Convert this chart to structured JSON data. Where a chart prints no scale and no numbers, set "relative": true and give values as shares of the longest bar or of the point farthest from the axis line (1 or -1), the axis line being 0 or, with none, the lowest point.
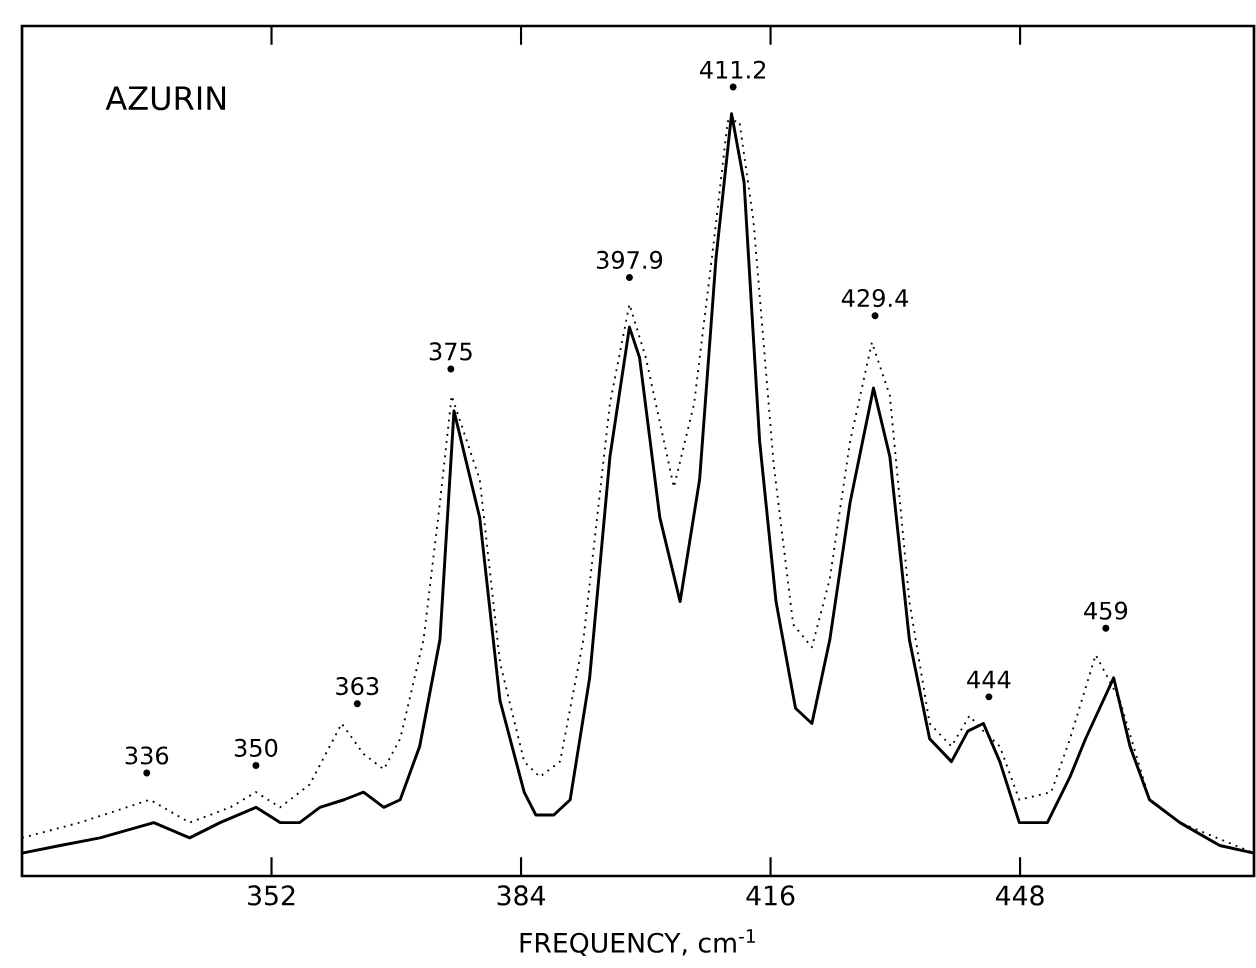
{
  "chart_data": {
    "type": "line",
    "relative": true,
    "xlabel": "FREQUENCY, cm$^{-1}$",
    "xlim": [
      320,
      478
    ],
    "xticks": [
      352,
      384,
      416,
      448
    ],
    "tick_labels": "x",
    "grid": false,
    "marker": "none",
    "series": [
      {
        "color": "#000000",
        "line_style": "solid",
        "x": [
          320,
          324.9,
          330,
          336.9,
          341.5,
          345.4,
          350,
          353.1,
          355.6,
          358.2,
          361.3,
          363.8,
          366.4,
          368.5,
          371.0,
          373.6,
          375.4,
          378.7,
          381.3,
          384.4,
          385.9,
          388.2,
          390.3,
          392.8,
          395.4,
          397.9,
          399.2,
          401.8,
          404.4,
          406.9,
          409.0,
          411.0,
          412.6,
          414.6,
          416.7,
          419.2,
          421.3,
          423.6,
          426.2,
          429.2,
          431.3,
          433.8,
          436.4,
          439.2,
          441.3,
          443.3,
          445.4,
          447.9,
          451.5,
          454.4,
          456.4,
          460.0,
          462.1,
          464.6,
          468.5,
          473.6,
          478
        ],
        "values": [
          0.03,
          0.04,
          0.05,
          0.07,
          0.05,
          0.07,
          0.09,
          0.07,
          0.07,
          0.09,
          0.1,
          0.11,
          0.09,
          0.1,
          0.17,
          0.31,
          0.61,
          0.47,
          0.23,
          0.11,
          0.08,
          0.08,
          0.1,
          0.26,
          0.55,
          0.72,
          0.68,
          0.47,
          0.36,
          0.52,
          0.81,
          1.0,
          0.91,
          0.57,
          0.36,
          0.22,
          0.2,
          0.31,
          0.49,
          0.64,
          0.55,
          0.31,
          0.18,
          0.15,
          0.19,
          0.2,
          0.15,
          0.07,
          0.07,
          0.13,
          0.18,
          0.26,
          0.17,
          0.1,
          0.07,
          0.04,
          0.03
        ]
      },
      {
        "color": "#000000",
        "line_style": "dotted",
        "x": [
          320,
          327.4,
          336.4,
          341.5,
          346.7,
          350,
          353.1,
          356.9,
          361.0,
          363.8,
          366.4,
          368.5,
          371.5,
          373.6,
          375.1,
          378.7,
          381.3,
          384.4,
          386.4,
          389,
          392,
          395.4,
          397.9,
          400,
          403.6,
          406.2,
          408.7,
          410.5,
          412,
          413.8,
          416.4,
          418.9,
          421.3,
          423.6,
          426.2,
          429,
          431.3,
          433.8,
          436.4,
          439.2,
          441.5,
          443.3,
          445.4,
          447.9,
          452,
          454.4,
          457.7,
          460.8,
          464.6,
          468.5,
          478
        ],
        "values": [
          0.05,
          0.07,
          0.1,
          0.07,
          0.09,
          0.11,
          0.09,
          0.12,
          0.2,
          0.16,
          0.14,
          0.18,
          0.31,
          0.49,
          0.63,
          0.52,
          0.28,
          0.15,
          0.13,
          0.15,
          0.31,
          0.62,
          0.75,
          0.68,
          0.51,
          0.62,
          0.83,
          0.99,
          0.99,
          0.86,
          0.54,
          0.33,
          0.3,
          0.39,
          0.57,
          0.7,
          0.63,
          0.36,
          0.2,
          0.17,
          0.21,
          0.19,
          0.17,
          0.1,
          0.11,
          0.18,
          0.29,
          0.23,
          0.1,
          0.07,
          0.03
        ]
      }
    ],
    "annotations": [
      "AZURIN",
      {
        "text": "336",
        "x": 336,
        "y": 0.1
      },
      {
        "text": "350",
        "x": 350,
        "y": 0.11
      },
      {
        "text": "363",
        "x": 363,
        "y": 0.17
      },
      {
        "text": "375",
        "x": 375,
        "y": 0.63
      },
      {
        "text": "397.9",
        "x": 397.9,
        "y": 0.75
      },
      {
        "text": "411.2",
        "x": 411.2,
        "y": 1.0
      },
      {
        "text": "429.4",
        "x": 429.4,
        "y": 0.7
      },
      {
        "text": "444",
        "x": 444,
        "y": 0.2
      },
      {
        "text": "459",
        "x": 459,
        "y": 0.29
      }
    ]
  }
}
